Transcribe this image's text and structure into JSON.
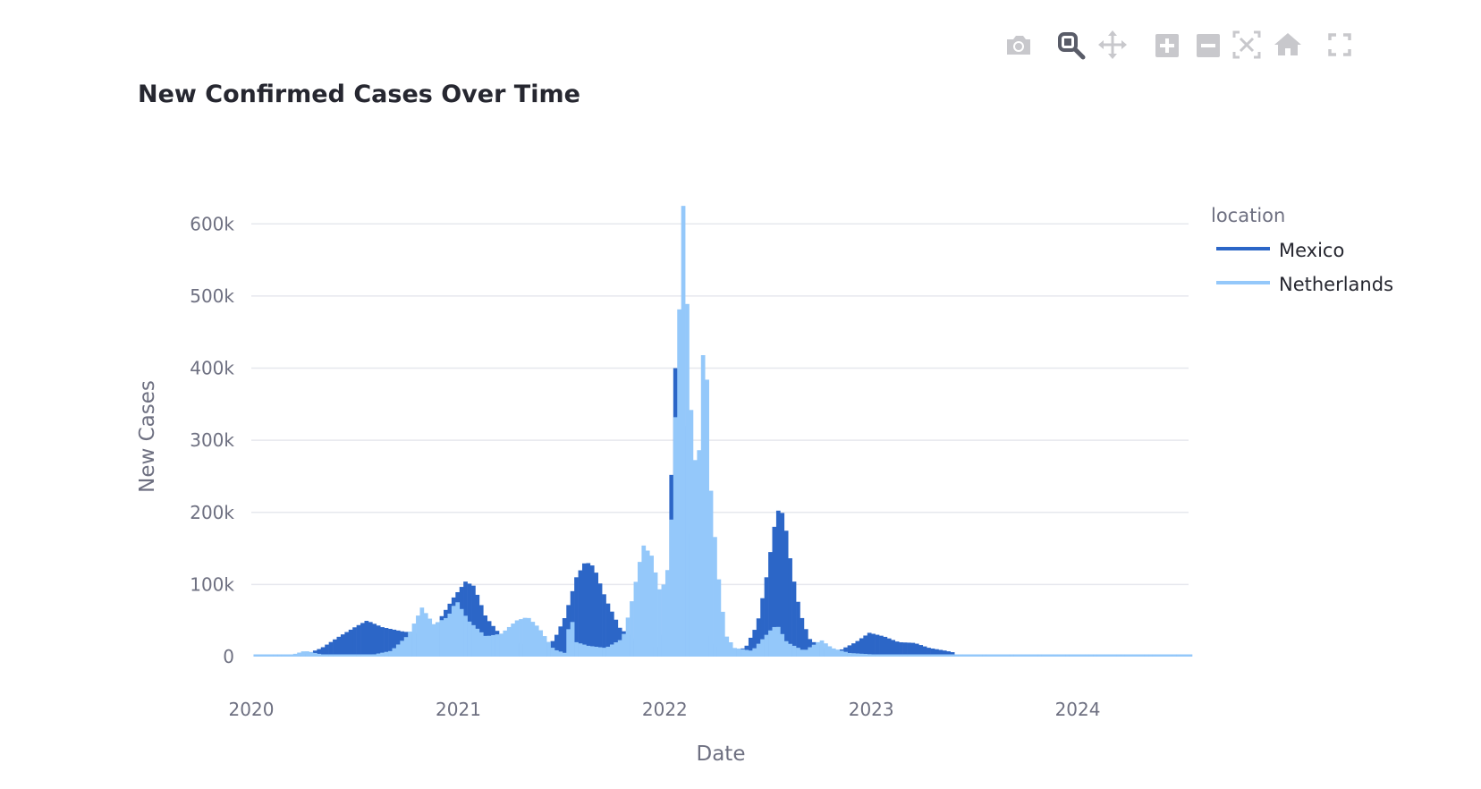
{
  "modebar": {
    "buttons": [
      {
        "icon": "camera-icon",
        "name": "download-plot-button"
      },
      {
        "icon": "zoom-icon",
        "name": "zoom-button"
      },
      {
        "icon": "pan-icon",
        "name": "pan-button"
      },
      {
        "icon": "zoom-in-icon",
        "name": "zoom-in-button"
      },
      {
        "icon": "zoom-out-icon",
        "name": "zoom-out-button"
      },
      {
        "icon": "autoscale-icon",
        "name": "autoscale-button"
      },
      {
        "icon": "home-icon",
        "name": "reset-axes-button"
      },
      {
        "icon": "fullscreen-icon",
        "name": "fullscreen-button"
      }
    ],
    "active": "zoom-button"
  },
  "chart_data": {
    "type": "bar",
    "title": "New Confirmed Cases Over Time",
    "xlabel": "Date",
    "ylabel": "New Cases",
    "xlim": [
      "2020-01-01",
      "2024-07-15"
    ],
    "ylim": [
      0,
      650000
    ],
    "x_ticks": [
      "2020",
      "2021",
      "2022",
      "2023",
      "2024"
    ],
    "y_ticks": [
      {
        "value": 0,
        "label": "0"
      },
      {
        "value": 100000,
        "label": "100k"
      },
      {
        "value": 200000,
        "label": "200k"
      },
      {
        "value": 300000,
        "label": "300k"
      },
      {
        "value": 400000,
        "label": "400k"
      },
      {
        "value": 500000,
        "label": "500k"
      },
      {
        "value": 600000,
        "label": "600k"
      }
    ],
    "grid": true,
    "legend": {
      "title": "location",
      "placement": "top-right"
    },
    "series": [
      {
        "name": "Mexico",
        "color": "#2c66c7",
        "points": [
          [
            "2020-01-05",
            0
          ],
          [
            "2020-03-01",
            0
          ],
          [
            "2020-04-01",
            3000
          ],
          [
            "2020-05-01",
            12000
          ],
          [
            "2020-06-01",
            28000
          ],
          [
            "2020-07-01",
            42000
          ],
          [
            "2020-07-20",
            50000
          ],
          [
            "2020-08-15",
            41000
          ],
          [
            "2020-09-20",
            35000
          ],
          [
            "2020-10-20",
            32000
          ],
          [
            "2020-11-20",
            45000
          ],
          [
            "2020-12-20",
            82000
          ],
          [
            "2021-01-10",
            104000
          ],
          [
            "2021-01-25",
            98000
          ],
          [
            "2021-02-15",
            55000
          ],
          [
            "2021-03-15",
            28000
          ],
          [
            "2021-04-15",
            18000
          ],
          [
            "2021-05-15",
            15000
          ],
          [
            "2021-06-15",
            22000
          ],
          [
            "2021-07-05",
            55000
          ],
          [
            "2021-07-25",
            110000
          ],
          [
            "2021-08-10",
            132000
          ],
          [
            "2021-08-25",
            125000
          ],
          [
            "2021-09-15",
            80000
          ],
          [
            "2021-10-10",
            40000
          ],
          [
            "2021-11-05",
            22000
          ],
          [
            "2021-12-01",
            15000
          ],
          [
            "2021-12-20",
            12000
          ],
          [
            "2022-01-05",
            60000
          ],
          [
            "2022-01-10",
            300000
          ],
          [
            "2022-01-14",
            405000
          ],
          [
            "2022-01-24",
            380000
          ],
          [
            "2022-02-01",
            300000
          ],
          [
            "2022-02-10",
            200000
          ],
          [
            "2022-02-20",
            100000
          ],
          [
            "2022-03-05",
            40000
          ],
          [
            "2022-03-20",
            18000
          ],
          [
            "2022-04-20",
            8000
          ],
          [
            "2022-05-20",
            12000
          ],
          [
            "2022-06-10",
            45000
          ],
          [
            "2022-06-25",
            105000
          ],
          [
            "2022-07-10",
            180000
          ],
          [
            "2022-07-20",
            212000
          ],
          [
            "2022-07-30",
            180000
          ],
          [
            "2022-08-10",
            120000
          ],
          [
            "2022-08-25",
            60000
          ],
          [
            "2022-09-10",
            25000
          ],
          [
            "2022-10-01",
            12000
          ],
          [
            "2022-11-01",
            8000
          ],
          [
            "2022-12-01",
            20000
          ],
          [
            "2022-12-25",
            33000
          ],
          [
            "2023-01-20",
            28000
          ],
          [
            "2023-02-15",
            20000
          ],
          [
            "2023-03-15",
            19000
          ],
          [
            "2023-04-10",
            12000
          ],
          [
            "2023-05-10",
            8000
          ],
          [
            "2023-05-22",
            6000
          ],
          [
            "2023-05-28",
            2000
          ],
          [
            "2023-06-15",
            1000
          ],
          [
            "2024-07-10",
            500
          ]
        ]
      },
      {
        "name": "Netherlands",
        "color": "#94c8fa",
        "points": [
          [
            "2020-01-05",
            0
          ],
          [
            "2020-03-01",
            500
          ],
          [
            "2020-04-01",
            8000
          ],
          [
            "2020-05-01",
            3000
          ],
          [
            "2020-06-01",
            1000
          ],
          [
            "2020-07-01",
            1000
          ],
          [
            "2020-08-01",
            3000
          ],
          [
            "2020-09-01",
            8000
          ],
          [
            "2020-10-01",
            30000
          ],
          [
            "2020-10-25",
            68000
          ],
          [
            "2020-11-15",
            45000
          ],
          [
            "2020-12-10",
            55000
          ],
          [
            "2020-12-25",
            78000
          ],
          [
            "2021-01-15",
            50000
          ],
          [
            "2021-02-15",
            28000
          ],
          [
            "2021-03-15",
            32000
          ],
          [
            "2021-04-10",
            50000
          ],
          [
            "2021-04-30",
            55000
          ],
          [
            "2021-05-20",
            40000
          ],
          [
            "2021-06-15",
            10000
          ],
          [
            "2021-07-05",
            5000
          ],
          [
            "2021-07-15",
            60000
          ],
          [
            "2021-07-25",
            20000
          ],
          [
            "2021-08-15",
            15000
          ],
          [
            "2021-09-15",
            12000
          ],
          [
            "2021-10-15",
            25000
          ],
          [
            "2021-11-01",
            80000
          ],
          [
            "2021-11-20",
            155000
          ],
          [
            "2021-12-05",
            140000
          ],
          [
            "2021-12-20",
            90000
          ],
          [
            "2022-01-01",
            110000
          ],
          [
            "2022-01-10",
            200000
          ],
          [
            "2022-01-20",
            420000
          ],
          [
            "2022-01-30",
            625000
          ],
          [
            "2022-02-05",
            510000
          ],
          [
            "2022-02-15",
            300000
          ],
          [
            "2022-02-25",
            245000
          ],
          [
            "2022-03-05",
            410000
          ],
          [
            "2022-03-10",
            450000
          ],
          [
            "2022-03-20",
            230000
          ],
          [
            "2022-04-01",
            120000
          ],
          [
            "2022-04-15",
            30000
          ],
          [
            "2022-05-01",
            12000
          ],
          [
            "2022-06-01",
            8000
          ],
          [
            "2022-06-20",
            25000
          ],
          [
            "2022-07-05",
            38000
          ],
          [
            "2022-07-15",
            44000
          ],
          [
            "2022-08-01",
            20000
          ],
          [
            "2022-09-01",
            8000
          ],
          [
            "2022-10-01",
            23000
          ],
          [
            "2022-10-20",
            12000
          ],
          [
            "2022-11-20",
            5000
          ],
          [
            "2023-01-01",
            3000
          ],
          [
            "2023-03-01",
            2000
          ],
          [
            "2023-06-01",
            1500
          ],
          [
            "2024-01-01",
            2000
          ],
          [
            "2024-07-10",
            1000
          ]
        ]
      }
    ]
  },
  "legend_items": [
    {
      "label": "Mexico",
      "color": "#2c66c7"
    },
    {
      "label": "Netherlands",
      "color": "#94c8fa"
    }
  ]
}
